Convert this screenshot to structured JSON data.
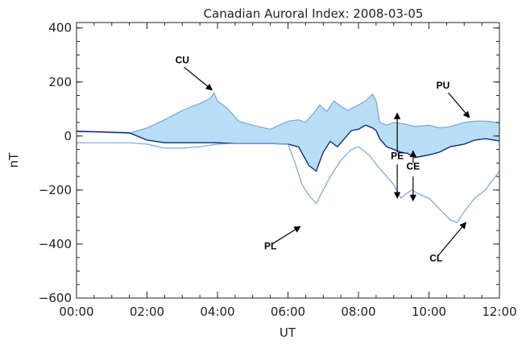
{
  "chart_data": {
    "type": "line",
    "title": "Canadian Auroral Index:  2008-03-05",
    "xlabel": "UT",
    "ylabel": "nT",
    "xlim": [
      0,
      12
    ],
    "ylim": [
      -600,
      420
    ],
    "x_ticks": [
      {
        "value": 0,
        "label": "00:00"
      },
      {
        "value": 2,
        "label": "02:00"
      },
      {
        "value": 4,
        "label": "04:00"
      },
      {
        "value": 6,
        "label": "06:00"
      },
      {
        "value": 8,
        "label": "08:00"
      },
      {
        "value": 10,
        "label": "10:00"
      },
      {
        "value": 12,
        "label": "12:00"
      }
    ],
    "y_ticks": [
      {
        "value": 400,
        "label": "400"
      },
      {
        "value": 200,
        "label": "200"
      },
      {
        "value": 0,
        "label": "0"
      },
      {
        "value": -200,
        "label": "−200"
      },
      {
        "value": -400,
        "label": "−400"
      },
      {
        "value": -600,
        "label": "−600"
      }
    ],
    "colors": {
      "envelope": "#7ba3d6",
      "equivalent": "#0d2d7a",
      "fill": "#b8def5",
      "axis": "#222222"
    },
    "series": [
      {
        "key": "upper",
        "x": [
          0,
          0.5,
          1.0,
          1.5,
          2.0,
          2.5,
          3.0,
          3.5,
          3.8,
          3.9,
          4.0,
          4.3,
          4.6,
          5.0,
          5.5,
          6.0,
          6.3,
          6.5,
          6.7,
          6.9,
          7.1,
          7.3,
          7.5,
          7.7,
          8.0,
          8.2,
          8.4,
          8.5,
          8.6,
          8.8,
          9.0,
          9.3,
          9.6,
          10.0,
          10.3,
          10.6,
          11.0,
          11.3,
          11.6,
          12.0
        ],
        "y": [
          15,
          15,
          12,
          10,
          30,
          60,
          95,
          120,
          140,
          160,
          130,
          100,
          55,
          40,
          25,
          55,
          60,
          50,
          80,
          115,
          90,
          130,
          110,
          95,
          115,
          130,
          155,
          130,
          50,
          40,
          50,
          45,
          35,
          40,
          30,
          35,
          50,
          55,
          55,
          50
        ]
      },
      {
        "key": "equivalent",
        "x": [
          0,
          0.5,
          1.0,
          1.5,
          2.0,
          2.5,
          3.0,
          3.5,
          4.0,
          4.5,
          5.0,
          5.5,
          6.0,
          6.3,
          6.6,
          6.8,
          7.0,
          7.2,
          7.4,
          7.6,
          7.8,
          8.0,
          8.2,
          8.4,
          8.5,
          8.6,
          8.8,
          9.0,
          9.2,
          9.4,
          9.6,
          9.8,
          10.0,
          10.3,
          10.6,
          11.0,
          11.3,
          11.6,
          12.0
        ],
        "y": [
          18,
          16,
          14,
          12,
          -15,
          -25,
          -25,
          -25,
          -25,
          -28,
          -28,
          -28,
          -30,
          -40,
          -110,
          -130,
          -60,
          -20,
          -40,
          -10,
          20,
          25,
          40,
          30,
          20,
          -10,
          -40,
          -50,
          -60,
          -65,
          -80,
          -75,
          -70,
          -60,
          -40,
          -30,
          -15,
          -10,
          -18
        ]
      },
      {
        "key": "lower",
        "x": [
          0,
          0.5,
          1.0,
          1.5,
          2.0,
          2.5,
          3.0,
          3.5,
          4.0,
          4.5,
          5.0,
          5.5,
          6.0,
          6.2,
          6.4,
          6.6,
          6.8,
          7.0,
          7.2,
          7.5,
          7.8,
          8.0,
          8.3,
          8.6,
          9.0,
          9.2,
          9.5,
          9.8,
          10.0,
          10.3,
          10.6,
          10.8,
          11.0,
          11.3,
          11.6,
          12.0
        ],
        "y": [
          -25,
          -25,
          -25,
          -25,
          -30,
          -45,
          -45,
          -40,
          -30,
          -28,
          -28,
          -28,
          -30,
          -100,
          -180,
          -220,
          -250,
          -200,
          -150,
          -90,
          -50,
          -40,
          -70,
          -120,
          -180,
          -230,
          -200,
          -220,
          -230,
          -270,
          -310,
          -320,
          -280,
          -230,
          -200,
          -130
        ]
      }
    ],
    "annotations": [
      {
        "label": "CU",
        "x": 3.0,
        "y": 270
      },
      {
        "label": "PU",
        "x": 10.4,
        "y": 175
      },
      {
        "label": "PE",
        "x": 9.1,
        "y": -85
      },
      {
        "label": "CE",
        "x": 9.55,
        "y": -125
      },
      {
        "label": "PL",
        "x": 5.5,
        "y": -420
      },
      {
        "label": "CL",
        "x": 10.2,
        "y": -465
      }
    ]
  }
}
